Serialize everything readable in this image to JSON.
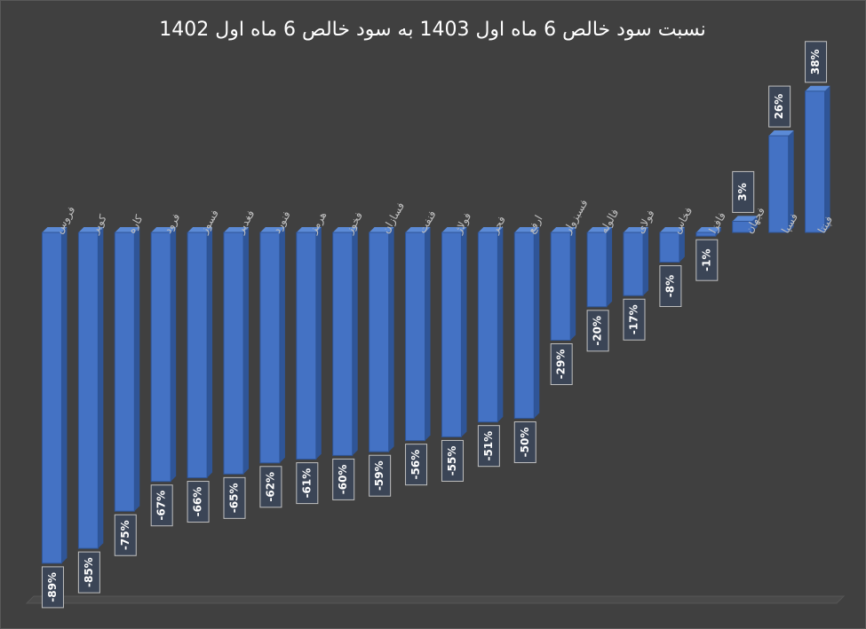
{
  "chart_data": {
    "type": "bar",
    "title": "نسبت سود خالص 6 ماه اول 1403 به سود خالص 6 ماه اول 1402",
    "categories": [
      "فروس",
      "کویر",
      "کاره",
      "فرود",
      "فسوز",
      "فغدیر",
      "فنورد",
      "هرمز",
      "فخوز",
      "فسازان",
      "فنفت",
      "فولاژ",
      "فجر",
      "ارفع",
      "فسبزوار",
      "فالوله",
      "فولای",
      "فخاس",
      "فافزا",
      "فجهان",
      "فسپا",
      "فپنتا"
    ],
    "values": [
      -89,
      -85,
      -75,
      -67,
      -66,
      -65,
      -62,
      -61,
      -60,
      -59,
      -56,
      -55,
      -51,
      -50,
      -29,
      -20,
      -17,
      -8,
      -1,
      3,
      26,
      38
    ],
    "value_labels": [
      "-89%",
      "-85%",
      "-75%",
      "-67%",
      "-66%",
      "-65%",
      "-62%",
      "-61%",
      "-60%",
      "-59%",
      "-56%",
      "-55%",
      "-51%",
      "-50%",
      "-29%",
      "-20%",
      "-17%",
      "-8%",
      "-1%",
      "3%",
      "26%",
      "38%"
    ],
    "color": "#4472c4"
  }
}
